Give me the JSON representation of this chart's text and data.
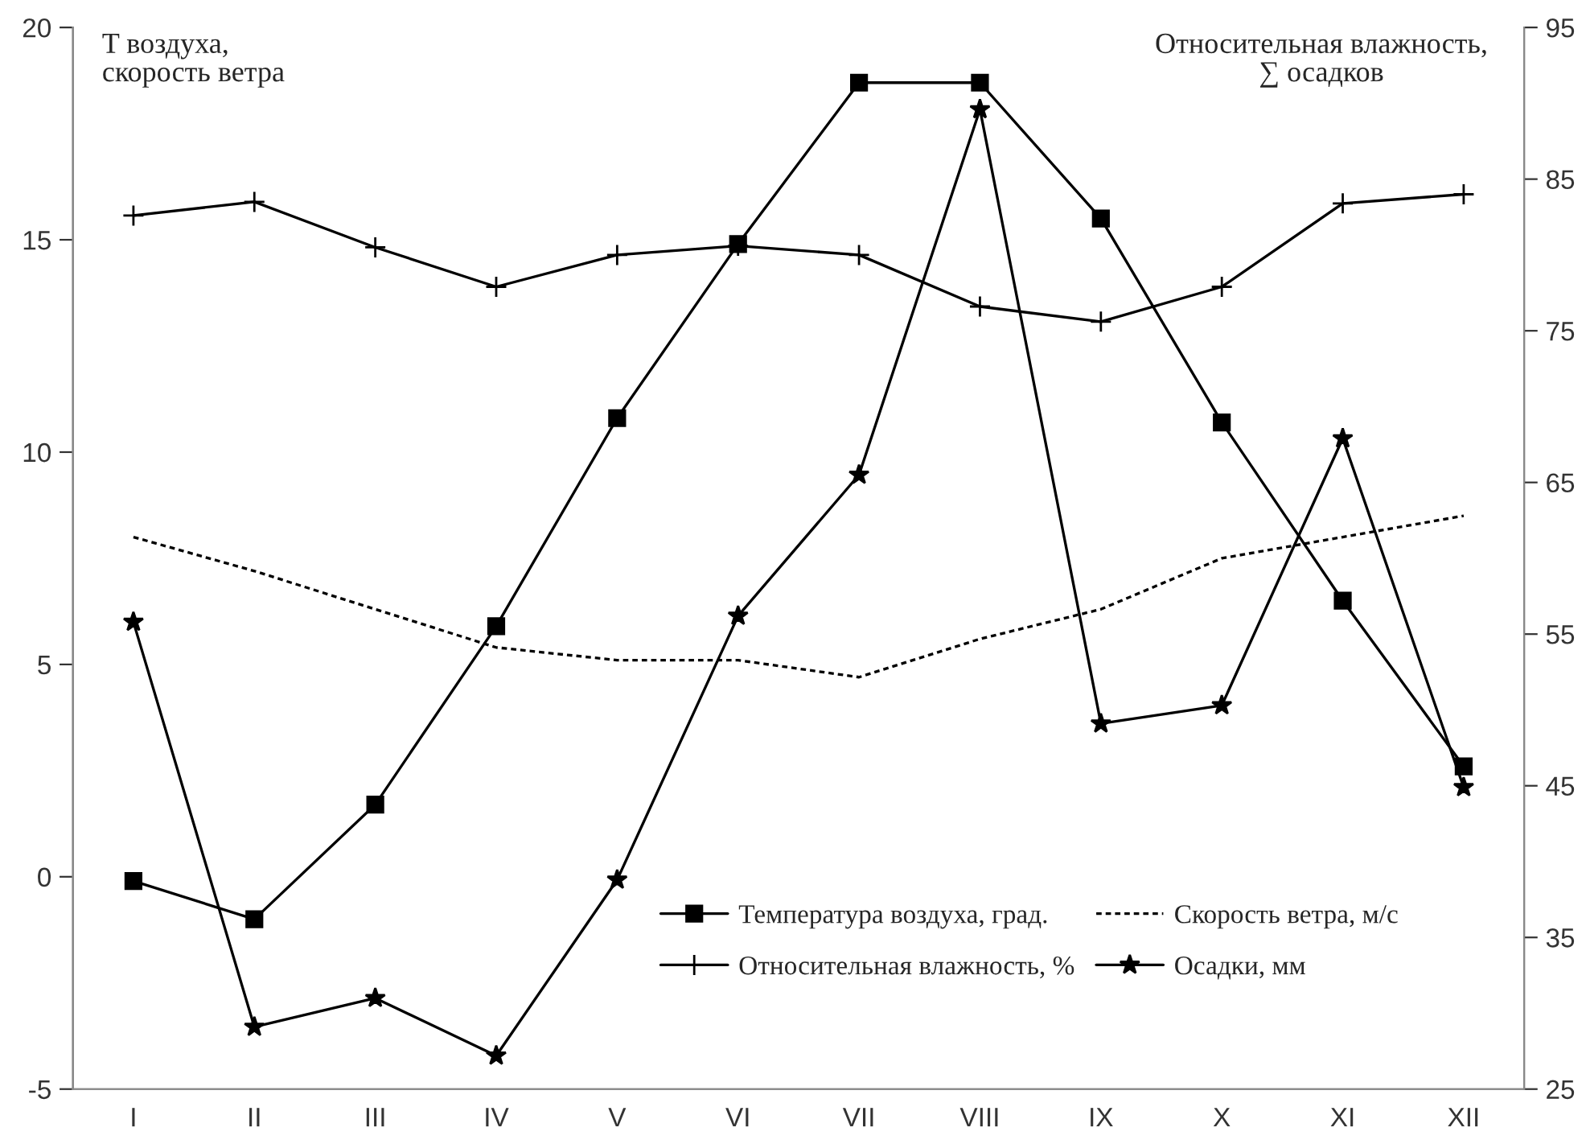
{
  "chart_data": {
    "type": "line",
    "ylabel": "T воздуха,\nскорость ветра",
    "y2label": "Относительная влажность,\n∑ осадков",
    "categories": [
      "I",
      "II",
      "III",
      "IV",
      "V",
      "VI",
      "VII",
      "VIII",
      "IX",
      "X",
      "XI",
      "XII"
    ],
    "series": [
      {
        "name": "Температура воздуха, град.",
        "color": "#000000",
        "marker": "square",
        "line_style": "solid",
        "values": [
          -0.1,
          -1.0,
          1.7,
          5.9,
          10.8,
          14.9,
          18.7,
          18.7,
          15.5,
          10.7,
          6.5,
          2.6
        ]
      },
      {
        "name": "Относительная влажность, %",
        "color": "#000000",
        "marker": "cross",
        "line_style": "solid",
        "axis": "y2",
        "values": [
          82.6,
          83.5,
          80.5,
          77.9,
          80.0,
          80.6,
          80.0,
          76.6,
          75.6,
          77.9,
          83.4,
          84.0
        ]
      },
      {
        "name": "Скорость ветра, м/с",
        "color": "#000000",
        "marker": "none",
        "line_style": "dashed",
        "values": [
          8.0,
          7.2,
          6.3,
          5.4,
          5.1,
          5.1,
          4.7,
          5.6,
          6.3,
          7.5,
          8.0,
          8.5
        ]
      },
      {
        "name": "Осадки, мм",
        "color": "#000000",
        "marker": "star",
        "line_style": "solid",
        "axis": "y2",
        "values": [
          55.8,
          29.1,
          31.0,
          27.2,
          38.8,
          56.2,
          65.5,
          89.6,
          49.1,
          50.3,
          67.9,
          44.9
        ]
      }
    ],
    "ylim": [
      -5,
      20
    ],
    "yticks": [
      -5,
      0,
      5,
      10,
      15,
      20
    ],
    "y2lim": [
      25,
      95
    ],
    "y2ticks": [
      25,
      35,
      45,
      55,
      65,
      75,
      85,
      95
    ],
    "legend": "bottom right",
    "grid": false
  }
}
